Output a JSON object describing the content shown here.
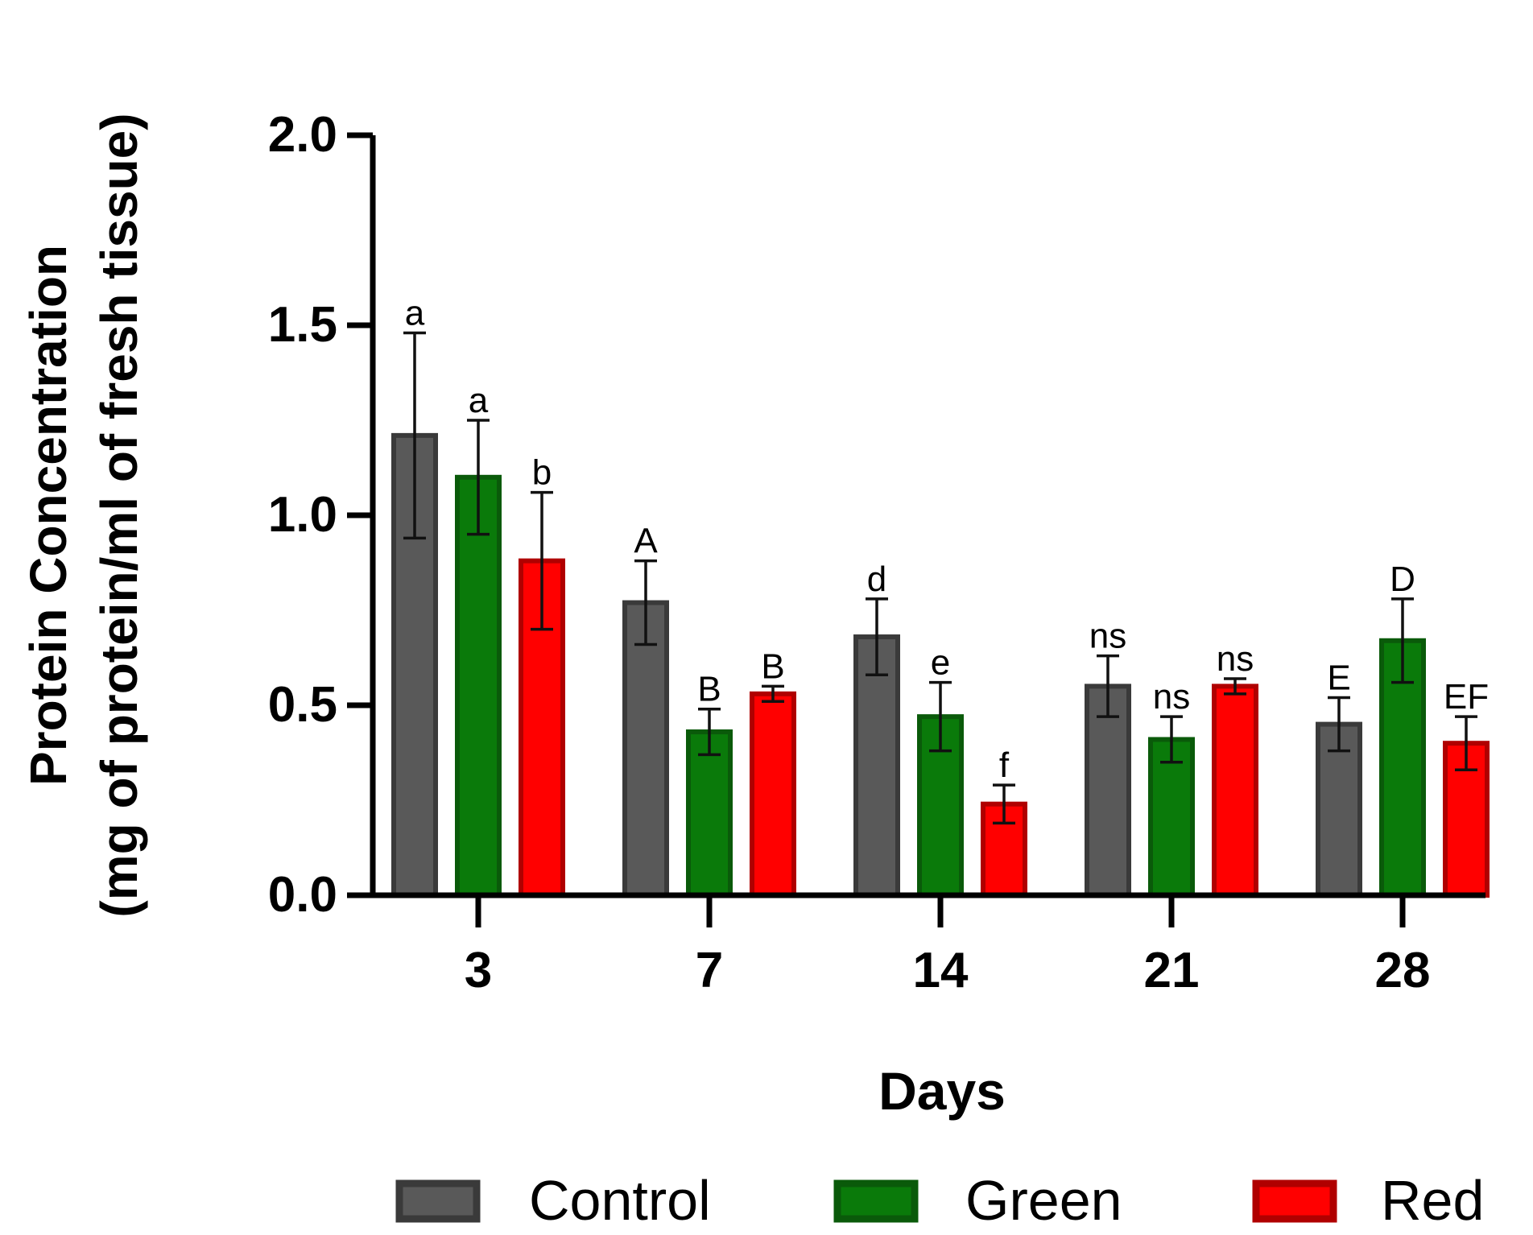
{
  "chart_data": {
    "type": "bar",
    "xlabel": "Days",
    "ylabel_line1": "Protein Concentration",
    "ylabel_line2": "(mg of protein/ml of fresh tissue)",
    "categories": [
      "3",
      "7",
      "14",
      "21",
      "28"
    ],
    "ylim": [
      0.0,
      2.0
    ],
    "yticks": [
      "0.0",
      "0.5",
      "1.0",
      "1.5",
      "2.0"
    ],
    "grid": false,
    "legend_position": "bottom",
    "series": [
      {
        "name": "Control",
        "color": "#595959",
        "edge": "#3a3a3a",
        "values": [
          1.21,
          0.77,
          0.68,
          0.55,
          0.45
        ],
        "errors": [
          0.27,
          0.11,
          0.1,
          0.08,
          0.07
        ],
        "labels": [
          "a",
          "A",
          "d",
          "ns",
          "E"
        ]
      },
      {
        "name": "Green",
        "color": "#0a7a0a",
        "edge": "#0a5a0a",
        "values": [
          1.1,
          0.43,
          0.47,
          0.41,
          0.67
        ],
        "errors": [
          0.15,
          0.06,
          0.09,
          0.06,
          0.11
        ],
        "labels": [
          "a",
          "B",
          "e",
          "ns",
          "D"
        ]
      },
      {
        "name": "Red",
        "color": "#ff0000",
        "edge": "#b00000",
        "values": [
          0.88,
          0.53,
          0.24,
          0.55,
          0.4
        ],
        "errors": [
          0.18,
          0.02,
          0.05,
          0.02,
          0.07
        ],
        "labels": [
          "b",
          "B",
          "f",
          "ns",
          "EF"
        ]
      }
    ]
  }
}
